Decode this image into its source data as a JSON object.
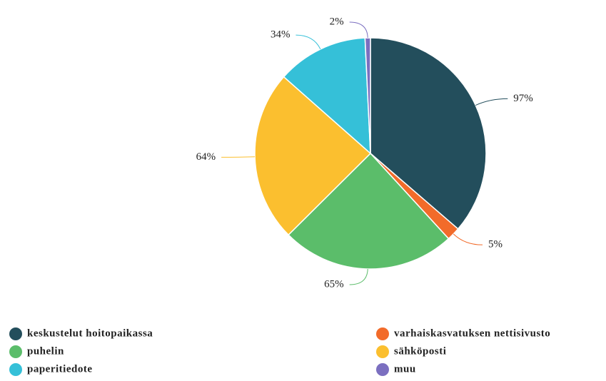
{
  "chart_data": {
    "type": "pie",
    "categories": [
      "keskustelut hoitopaikassa",
      "varhaiskasvatuksen nettisivusto",
      "puhelin",
      "sähköposti",
      "paperitiedote",
      "muu"
    ],
    "values": [
      97,
      5,
      65,
      64,
      34,
      2
    ],
    "value_labels": [
      "97%",
      "5%",
      "65%",
      "64%",
      "34%",
      "2%"
    ],
    "colors": [
      "#234e5c",
      "#f26b2a",
      "#5bbd6a",
      "#fbbf2f",
      "#35c0d8",
      "#7b6fc0"
    ],
    "legend": "bottom"
  }
}
